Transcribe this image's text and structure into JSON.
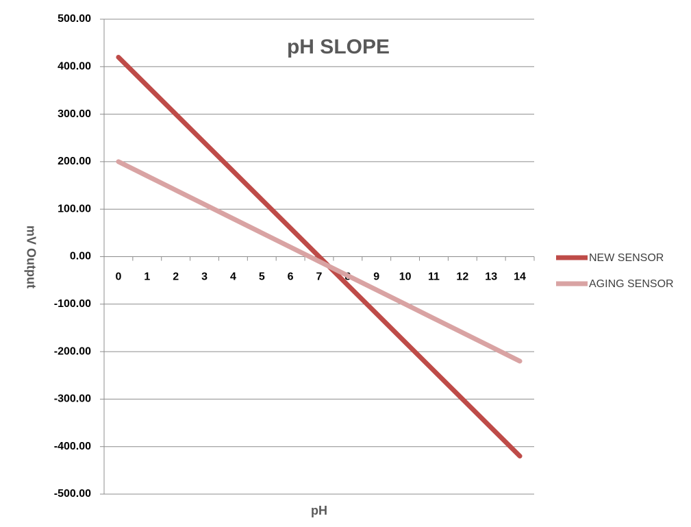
{
  "chart_data": {
    "type": "line",
    "title": "pH SLOPE",
    "x_label": "pH",
    "y_label": "mV Output",
    "categories": [
      "0",
      "1",
      "2",
      "3",
      "4",
      "5",
      "6",
      "7",
      "8",
      "9",
      "10",
      "11",
      "12",
      "13",
      "14"
    ],
    "series": [
      {
        "name": "NEW SENSOR",
        "color": "#be4b48",
        "values": [
          420,
          360,
          300,
          240,
          180,
          120,
          60,
          0,
          -60,
          -120,
          -180,
          -240,
          -300,
          -360,
          -420
        ]
      },
      {
        "name": "AGING SENSOR",
        "color": "#d9a3a3",
        "values": [
          200,
          170,
          140,
          110,
          80,
          50,
          20,
          -10,
          -40,
          -70,
          -100,
          -130,
          -160,
          -190,
          -220
        ]
      }
    ],
    "ylim": [
      -500,
      500
    ],
    "yticks": [
      {
        "value": 500,
        "label": "500.00"
      },
      {
        "value": 400,
        "label": "400.00"
      },
      {
        "value": 300,
        "label": "300.00"
      },
      {
        "value": 200,
        "label": "200.00"
      },
      {
        "value": 100,
        "label": "100.00"
      },
      {
        "value": 0,
        "label": "0.00"
      },
      {
        "value": -100,
        "label": "-100.00"
      },
      {
        "value": -200,
        "label": "-200.00"
      },
      {
        "value": -300,
        "label": "-300.00"
      },
      {
        "value": -400,
        "label": "-400.00"
      },
      {
        "value": -500,
        "label": "-500.00"
      }
    ],
    "grid": true,
    "legend": "right"
  }
}
